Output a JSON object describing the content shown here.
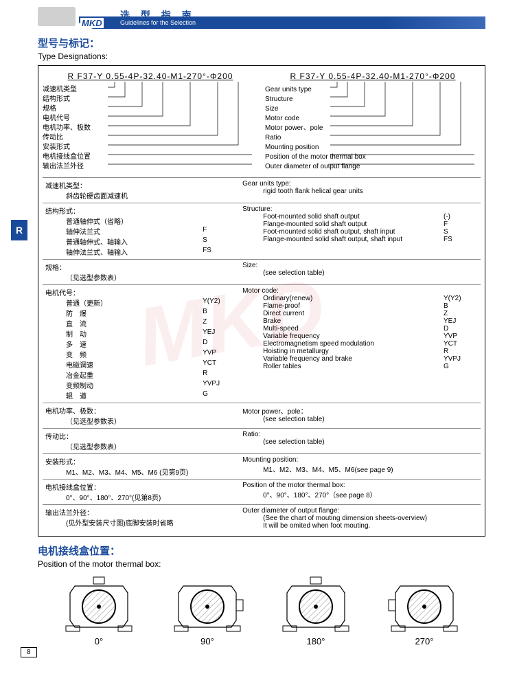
{
  "header": {
    "brand": "MKD",
    "title_cn": "选 型 指 南",
    "title_en": "Guidelines for the Selection"
  },
  "side_tab": "R",
  "section1": {
    "title_cn": "型号与标记：",
    "title_en": "Type Designations:"
  },
  "code_string": "R F37-Y 0.55-4P-32.40-M1-270°-Φ200",
  "labels_cn": [
    "减速机类型",
    "结构形式",
    "规格",
    "电机代号",
    "电机功率、极数",
    "传动比",
    "安装形式",
    "电机接线盒位置",
    "输出法兰外径"
  ],
  "labels_en": [
    "Gear units type",
    "Structure",
    "Size",
    "Motor code",
    "Motor power、pole",
    "Ratio",
    "Mounting position",
    "Position of the motor thermal box",
    "Outer diameter of output flange"
  ],
  "rows": [
    {
      "cn_head": "减速机类型：",
      "cn_body": "斜齿轮硬齿面减速机",
      "en_head": "Gear units type:",
      "en_body": "rigid tooth flank helical gear units"
    },
    {
      "cn_head": "结构形式：",
      "cn_items": [
        {
          "k": "普通轴伸式（省略）",
          "v": ""
        },
        {
          "k": "轴伸法兰式",
          "v": "F"
        },
        {
          "k": "普通轴伸式、轴输入",
          "v": "S"
        },
        {
          "k": "轴伸法兰式、轴输入",
          "v": "FS"
        }
      ],
      "en_head": "Structure:",
      "en_items": [
        {
          "k": "Foot-mounted solid shaft output",
          "v": "(-)"
        },
        {
          "k": "Flange-mounted solid shaft output",
          "v": "F"
        },
        {
          "k": "Foot-mounted solid shaft output, shaft input",
          "v": "S"
        },
        {
          "k": "Flange-mounted solid shaft output, shaft input",
          "v": "FS"
        }
      ]
    },
    {
      "cn_head": "规格：",
      "cn_body": "（见选型参数表）",
      "en_head": "Size:",
      "en_body": "(see selection table)"
    },
    {
      "cn_head": "电机代号：",
      "cn_items": [
        {
          "k": "普通（更新）",
          "v": "Y(Y2)"
        },
        {
          "k": "防　爆",
          "v": "B"
        },
        {
          "k": "直　流",
          "v": "Z"
        },
        {
          "k": "制　动",
          "v": "YEJ"
        },
        {
          "k": "多　速",
          "v": "D"
        },
        {
          "k": "变　频",
          "v": "YVP"
        },
        {
          "k": "电磁调速",
          "v": "YCT"
        },
        {
          "k": "冶金起重",
          "v": "R"
        },
        {
          "k": "变频制动",
          "v": "YVPJ"
        },
        {
          "k": "辊　道",
          "v": "G"
        }
      ],
      "en_head": "Motor code:",
      "en_items": [
        {
          "k": "Ordinary(renew)",
          "v": "Y(Y2)"
        },
        {
          "k": "Flame-proof",
          "v": "B"
        },
        {
          "k": "Direct current",
          "v": "Z"
        },
        {
          "k": "Brake",
          "v": "YEJ"
        },
        {
          "k": "Multi-speed",
          "v": "D"
        },
        {
          "k": "Variable frequency",
          "v": "YVP"
        },
        {
          "k": "Electromagnetism speed modulation",
          "v": "YCT"
        },
        {
          "k": "Hoisting in metallurgy",
          "v": "R"
        },
        {
          "k": "Variable frequency and brake",
          "v": "YVPJ"
        },
        {
          "k": "Roller tables",
          "v": "G"
        }
      ]
    },
    {
      "cn_head": "电机功率、极数：",
      "cn_body": "（见选型参数表）",
      "en_head": "Motor power、pole：",
      "en_body": "(see selection table)"
    },
    {
      "cn_head": "传动比：",
      "cn_body": "（见选型参数表）",
      "en_head": "Ratio:",
      "en_body": "(see selection table)"
    },
    {
      "cn_head": "安装形式：",
      "cn_body": "M1、M2、M3、M4、M5、M6 (见第9页)",
      "en_head": "Mounting position:",
      "en_body": "M1、M2、M3、M4、M5、M6(see page 9)"
    },
    {
      "cn_head": "电机接线盒位置：",
      "cn_body": "0°、90°、180°、270°(见第8页)",
      "en_head": "Position of the motor thermal box:",
      "en_body": "0°、90°、180°、270°（see page 8）"
    },
    {
      "cn_head": "输出法兰外径：",
      "cn_body": "(见外型安装尺寸图)底脚安装时省略",
      "en_head": "Outer diameter of output flange:",
      "en_body": "(See the chart of mouting dimension sheets-overview)\nIt will be omited when foot mouting."
    }
  ],
  "section2": {
    "title_cn": "电机接线盒位置：",
    "title_en": "Position of the motor thermal box:"
  },
  "angles": [
    "0°",
    "90°",
    "180°",
    "270°"
  ],
  "page_number": "8",
  "colors": {
    "brand_blue": "#1a4a9a",
    "border": "#000000",
    "rule": "#888888"
  }
}
